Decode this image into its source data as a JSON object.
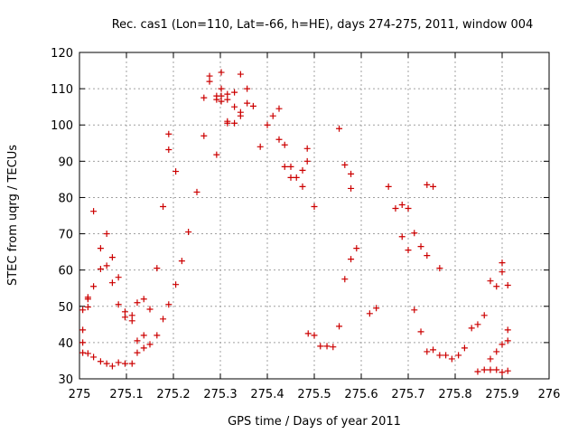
{
  "chart_data": {
    "type": "scatter",
    "title": "Rec. cas1 (Lon=110, Lat=-66, h=HE), days 274-275, 2011, window 004",
    "xlabel": "GPS time / Days of year 2011",
    "ylabel": "STEC from uqrg / TECUs",
    "xlim": [
      275,
      276
    ],
    "ylim": [
      30,
      120
    ],
    "xticks": [
      275,
      275.1,
      275.2,
      275.3,
      275.4,
      275.5,
      275.6,
      275.7,
      275.8,
      275.9,
      276
    ],
    "yticks": [
      30,
      40,
      50,
      60,
      70,
      80,
      90,
      100,
      110,
      120
    ],
    "grid": true,
    "marker": "plus",
    "color": "#cc0000",
    "points": [
      [
        275.007,
        49
      ],
      [
        275.007,
        43.5
      ],
      [
        275.007,
        40
      ],
      [
        275.007,
        37.2
      ],
      [
        275.018,
        52
      ],
      [
        275.018,
        52.5
      ],
      [
        275.018,
        49.8
      ],
      [
        275.018,
        37
      ],
      [
        275.03,
        76.2
      ],
      [
        275.03,
        55.5
      ],
      [
        275.03,
        36
      ],
      [
        275.045,
        66
      ],
      [
        275.045,
        60.3
      ],
      [
        275.045,
        34.8
      ],
      [
        275.058,
        70
      ],
      [
        275.058,
        61.2
      ],
      [
        275.058,
        34.2
      ],
      [
        275.07,
        63.5
      ],
      [
        275.07,
        56.5
      ],
      [
        275.07,
        33.5
      ],
      [
        275.083,
        58
      ],
      [
        275.083,
        50.5
      ],
      [
        275.083,
        34.5
      ],
      [
        275.097,
        48.5
      ],
      [
        275.097,
        47
      ],
      [
        275.097,
        34.2
      ],
      [
        275.112,
        47.5
      ],
      [
        275.112,
        46
      ],
      [
        275.112,
        34.2
      ],
      [
        275.123,
        51
      ],
      [
        275.123,
        40.5
      ],
      [
        275.123,
        37.2
      ],
      [
        275.137,
        52
      ],
      [
        275.137,
        42
      ],
      [
        275.137,
        38.5
      ],
      [
        275.15,
        49.2
      ],
      [
        275.15,
        39.5
      ],
      [
        275.165,
        60.5
      ],
      [
        275.165,
        42
      ],
      [
        275.178,
        77.5
      ],
      [
        275.178,
        46.5
      ],
      [
        275.19,
        97.5
      ],
      [
        275.19,
        93.2
      ],
      [
        275.19,
        50.5
      ],
      [
        275.205,
        87.2
      ],
      [
        275.205,
        56
      ],
      [
        275.218,
        62.5
      ],
      [
        275.232,
        70.5
      ],
      [
        275.25,
        81.5
      ],
      [
        275.265,
        107.5
      ],
      [
        275.265,
        97
      ],
      [
        275.277,
        113.5
      ],
      [
        275.277,
        112
      ],
      [
        275.292,
        108
      ],
      [
        275.292,
        107
      ],
      [
        275.292,
        91.8
      ],
      [
        275.302,
        114.5
      ],
      [
        275.302,
        110
      ],
      [
        275.302,
        108
      ],
      [
        275.302,
        106.5
      ],
      [
        275.315,
        108.5
      ],
      [
        275.315,
        107
      ],
      [
        275.315,
        101
      ],
      [
        275.315,
        100.5
      ],
      [
        275.33,
        109
      ],
      [
        275.33,
        105
      ],
      [
        275.33,
        100.5
      ],
      [
        275.343,
        114
      ],
      [
        275.343,
        103.5
      ],
      [
        275.343,
        102.5
      ],
      [
        275.357,
        110
      ],
      [
        275.357,
        106
      ],
      [
        275.37,
        105.2
      ],
      [
        275.385,
        94
      ],
      [
        275.4,
        100
      ],
      [
        275.412,
        102.5
      ],
      [
        275.425,
        104.5
      ],
      [
        275.425,
        96
      ],
      [
        275.437,
        94.5
      ],
      [
        275.437,
        88.5
      ],
      [
        275.45,
        88.5
      ],
      [
        275.45,
        85.5
      ],
      [
        275.462,
        85.5
      ],
      [
        275.475,
        87.5
      ],
      [
        275.475,
        83
      ],
      [
        275.485,
        93.5
      ],
      [
        275.485,
        90
      ],
      [
        275.487,
        42.5
      ],
      [
        275.5,
        77.5
      ],
      [
        275.5,
        42
      ],
      [
        275.513,
        39
      ],
      [
        275.527,
        39
      ],
      [
        275.54,
        38.8
      ],
      [
        275.553,
        99
      ],
      [
        275.553,
        44.5
      ],
      [
        275.565,
        89
      ],
      [
        275.565,
        57.5
      ],
      [
        275.578,
        86.5
      ],
      [
        275.578,
        82.5
      ],
      [
        275.578,
        63
      ],
      [
        275.59,
        66
      ],
      [
        275.618,
        48
      ],
      [
        275.632,
        49.5
      ],
      [
        275.658,
        83
      ],
      [
        275.673,
        77
      ],
      [
        275.687,
        78
      ],
      [
        275.687,
        69.2
      ],
      [
        275.7,
        77
      ],
      [
        275.7,
        65.5
      ],
      [
        275.713,
        70.2
      ],
      [
        275.713,
        49
      ],
      [
        275.727,
        66.5
      ],
      [
        275.727,
        43
      ],
      [
        275.74,
        83.5
      ],
      [
        275.74,
        64
      ],
      [
        275.74,
        37.5
      ],
      [
        275.753,
        83
      ],
      [
        275.753,
        38
      ],
      [
        275.767,
        60.5
      ],
      [
        275.767,
        36.5
      ],
      [
        275.78,
        36.5
      ],
      [
        275.793,
        35.5
      ],
      [
        275.807,
        36.5
      ],
      [
        275.82,
        38.5
      ],
      [
        275.835,
        44
      ],
      [
        275.848,
        45
      ],
      [
        275.848,
        32
      ],
      [
        275.862,
        47.5
      ],
      [
        275.862,
        32.5
      ],
      [
        275.875,
        57
      ],
      [
        275.875,
        35.5
      ],
      [
        275.875,
        32.5
      ],
      [
        275.888,
        55.5
      ],
      [
        275.888,
        37.5
      ],
      [
        275.888,
        32.5
      ],
      [
        275.9,
        62
      ],
      [
        275.9,
        59.5
      ],
      [
        275.9,
        39.5
      ],
      [
        275.9,
        31.8
      ],
      [
        275.912,
        55.8
      ],
      [
        275.912,
        43.5
      ],
      [
        275.912,
        40.5
      ],
      [
        275.912,
        32.2
      ]
    ]
  }
}
